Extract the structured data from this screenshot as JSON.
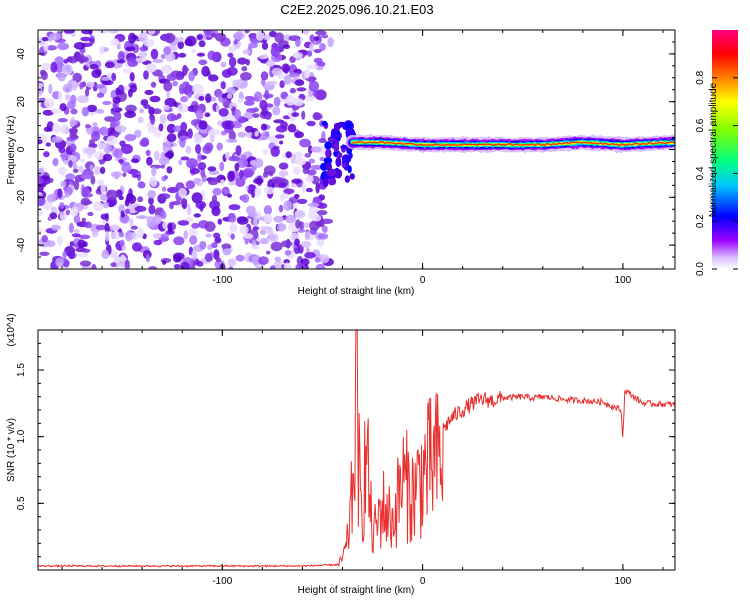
{
  "title": "C2E2.2025.096.10.21.E03",
  "colors": {
    "spectrogram_noise": "#7a2fd6",
    "snr_line": "#e8302e",
    "colormap": [
      "#ffffff",
      "#9b00ff",
      "#0000ff",
      "#00c8ff",
      "#00ff80",
      "#80ff00",
      "#ffff00",
      "#ff8000",
      "#ff0000",
      "#ff0080"
    ]
  },
  "chart_data": [
    {
      "type": "heatmap",
      "xlabel": "Height of straight line (km)",
      "ylabel": "Frequency (Hz)",
      "xlim": [
        -192,
        126
      ],
      "ylim": [
        -50,
        50
      ],
      "xticks": [
        -100,
        0,
        100
      ],
      "xtick_labels": [
        "-100",
        "0",
        "100"
      ],
      "yticks": [
        -40,
        -20,
        0,
        20,
        40
      ],
      "ytick_labels": [
        "-40",
        "-20",
        "0",
        "20",
        "40"
      ],
      "colorbar": {
        "label": "Normalized spectral amplitude",
        "range": [
          0,
          1
        ],
        "ticks": [
          0.0,
          0.2,
          0.4,
          0.6,
          0.8
        ],
        "tick_labels": [
          "0.0",
          "0.2",
          "0.4",
          "0.6",
          "0.8"
        ]
      },
      "noise_region_x": [
        -192,
        -48
      ],
      "transition_x": [
        -50,
        -35
      ],
      "signal_band": {
        "x": [
          -35,
          -20,
          0,
          20,
          40,
          60,
          80,
          100,
          126
        ],
        "center_freq": [
          3,
          3,
          2,
          2,
          2,
          2,
          3,
          2,
          3
        ],
        "amplitude": [
          0.5,
          0.7,
          0.75,
          0.9,
          0.95,
          0.85,
          0.95,
          0.9,
          0.8
        ]
      }
    },
    {
      "type": "line",
      "xlabel": "Height of straight line (km)",
      "ylabel": "SNR (10 * v/v)",
      "y_multiplier": "(x10^4)",
      "xlim": [
        -192,
        126
      ],
      "ylim": [
        0,
        1.8
      ],
      "xticks": [
        -100,
        0,
        100
      ],
      "xtick_labels": [
        "-100",
        "0",
        "100"
      ],
      "yticks": [
        0.5,
        1.0,
        1.5
      ],
      "ytick_labels": [
        "0.5",
        "1.0",
        "1.5"
      ],
      "series": [
        {
          "x": [
            -192,
            -120,
            -60,
            -42,
            -38,
            -35,
            -33,
            -31,
            -28,
            -25,
            -20,
            -15,
            -10,
            -5,
            0,
            5,
            10,
            15,
            20,
            25,
            30,
            35,
            40,
            50,
            55,
            60,
            70,
            80,
            90,
            99,
            100,
            101,
            110,
            126
          ],
          "y": [
            0.03,
            0.03,
            0.03,
            0.04,
            0.2,
            0.7,
            1.78,
            0.5,
            1.1,
            0.3,
            0.6,
            0.45,
            0.85,
            0.7,
            0.9,
            1.0,
            1.05,
            1.15,
            1.2,
            1.25,
            1.28,
            1.27,
            1.29,
            1.3,
            1.29,
            1.3,
            1.28,
            1.27,
            1.26,
            1.2,
            1.0,
            1.35,
            1.25,
            1.24
          ]
        }
      ]
    }
  ]
}
